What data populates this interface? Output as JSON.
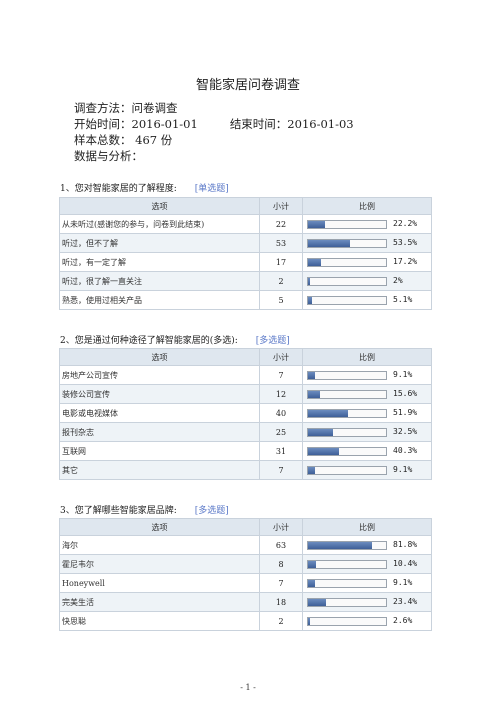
{
  "doc": {
    "title": "智能家居问卷调查",
    "method": "调查方法：问卷调查",
    "start": "开始时间：2016-01-01",
    "end": "结束时间：2016-01-03",
    "samples": "样本总数： 467 份",
    "analysis": "数据与分析：",
    "page_number": "- 1 -"
  },
  "headers": {
    "option": "选项",
    "count": "小计",
    "ratio": "比例"
  },
  "questions": [
    {
      "label": "1、您对智能家居的了解程度:",
      "type": "[单选题]",
      "rows": [
        {
          "option": "从未听过(感谢您的参与，问卷到此结束)",
          "count": "22",
          "ratio_text": "22.2%",
          "ratio": 22.2
        },
        {
          "option": "听过，但不了解",
          "count": "53",
          "ratio_text": "53.5%",
          "ratio": 53.5
        },
        {
          "option": "听过，有一定了解",
          "count": "17",
          "ratio_text": "17.2%",
          "ratio": 17.2
        },
        {
          "option": "听过，很了解一直关注",
          "count": "2",
          "ratio_text": "2%",
          "ratio": 2
        },
        {
          "option": "熟悉，使用过相关产品",
          "count": "5",
          "ratio_text": "5.1%",
          "ratio": 5.1
        }
      ]
    },
    {
      "label": "2、您是通过何种途径了解智能家居的(多选):",
      "type": "[多选题]",
      "rows": [
        {
          "option": "房地产公司宣传",
          "count": "7",
          "ratio_text": "9.1%",
          "ratio": 9.1
        },
        {
          "option": "装修公司宣传",
          "count": "12",
          "ratio_text": "15.6%",
          "ratio": 15.6
        },
        {
          "option": "电影或电视媒体",
          "count": "40",
          "ratio_text": "51.9%",
          "ratio": 51.9
        },
        {
          "option": "报刊杂志",
          "count": "25",
          "ratio_text": "32.5%",
          "ratio": 32.5
        },
        {
          "option": "互联网",
          "count": "31",
          "ratio_text": "40.3%",
          "ratio": 40.3
        },
        {
          "option": "其它",
          "count": "7",
          "ratio_text": "9.1%",
          "ratio": 9.1
        }
      ]
    },
    {
      "label": "3、您了解哪些智能家居品牌:",
      "type": "[多选题]",
      "rows": [
        {
          "option": "海尔",
          "count": "63",
          "ratio_text": "81.8%",
          "ratio": 81.8
        },
        {
          "option": "霍尼韦尔",
          "count": "8",
          "ratio_text": "10.4%",
          "ratio": 10.4
        },
        {
          "option": "Honeywell",
          "count": "7",
          "ratio_text": "9.1%",
          "ratio": 9.1
        },
        {
          "option": "完美生活",
          "count": "18",
          "ratio_text": "23.4%",
          "ratio": 23.4
        },
        {
          "option": "快思聪",
          "count": "2",
          "ratio_text": "2.6%",
          "ratio": 2.6
        }
      ]
    }
  ]
}
